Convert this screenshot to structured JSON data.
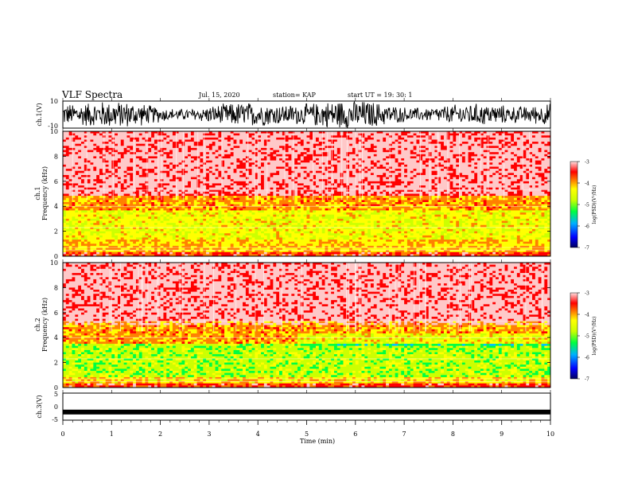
{
  "header": {
    "title": "VLF Spectra",
    "date": "Jul. 15, 2020",
    "station": "station= KAP",
    "start": "start UT =  19: 30: 1"
  },
  "colors": {
    "ch1_trace": "#000000",
    "ch3_trace": "#000000",
    "colormap": [
      "#000080",
      "#0000ff",
      "#00c0ff",
      "#00ff40",
      "#ccff00",
      "#ffff00",
      "#ff8000",
      "#ff0000",
      "#ffc8c8"
    ]
  },
  "chart_data": [
    {
      "type": "line",
      "panel": "ch1",
      "ylabel": "ch.1(V)",
      "ylim": [
        -10,
        10
      ],
      "yticks": [
        "10",
        "-10"
      ],
      "xlim": [
        0,
        10
      ],
      "note_shape": "dense oscillating waveform"
    },
    {
      "type": "heatmap",
      "panel": "ch1-spectrogram",
      "ylabel": "ch.1\nFrequency (kHz)",
      "ylim": [
        0,
        10
      ],
      "yticks": [
        "0",
        "2",
        "4",
        "6",
        "8",
        "10"
      ],
      "xlim": [
        0,
        10
      ],
      "colorbar": {
        "label": "log(PSD)(V²/Hz)",
        "range": [
          -7,
          -3
        ],
        "ticks": [
          "-3",
          "-4",
          "-5",
          "-6",
          "-7"
        ]
      },
      "bands": [
        {
          "f_low": 0.3,
          "f_high": 1.3,
          "level": -4.3
        },
        {
          "f_low": 1.3,
          "f_high": 3.6,
          "level": -4.6
        },
        {
          "f_low": 3.6,
          "f_high": 4.8,
          "level": -4.1
        },
        {
          "f_low": 4.8,
          "f_high": 10,
          "level": -3.3
        }
      ]
    },
    {
      "type": "heatmap",
      "panel": "ch2-spectrogram",
      "ylabel": "ch.2\nFrequency (kHz)",
      "ylim": [
        0,
        10
      ],
      "yticks": [
        "0",
        "2",
        "4",
        "6",
        "8",
        "10"
      ],
      "xlim": [
        0,
        10
      ],
      "colorbar": {
        "label": "log(PSD)(V²/Hz)",
        "range": [
          -7,
          -3
        ],
        "ticks": [
          "-3",
          "-4",
          "-5",
          "-6",
          "-7"
        ]
      },
      "bands": [
        {
          "f_low": 0.3,
          "f_high": 0.9,
          "level": -4.4
        },
        {
          "f_low": 0.9,
          "f_high": 3.5,
          "level": -5.0
        },
        {
          "f_low": 3.5,
          "f_high": 5.3,
          "level": -4.1
        },
        {
          "f_low": 5.3,
          "f_high": 10,
          "level": -3.3
        }
      ]
    },
    {
      "type": "line",
      "panel": "ch3",
      "ylabel": "ch.3(V)",
      "ylim": [
        -5,
        5
      ],
      "yticks": [
        "5",
        "0",
        "-5"
      ],
      "xlim": [
        0,
        10
      ],
      "note_shape": "flat trace near -2 V"
    }
  ],
  "xaxis": {
    "label": "Time (min)",
    "ticks": [
      "0",
      "1",
      "2",
      "3",
      "4",
      "5",
      "6",
      "7",
      "8",
      "9",
      "10"
    ]
  }
}
